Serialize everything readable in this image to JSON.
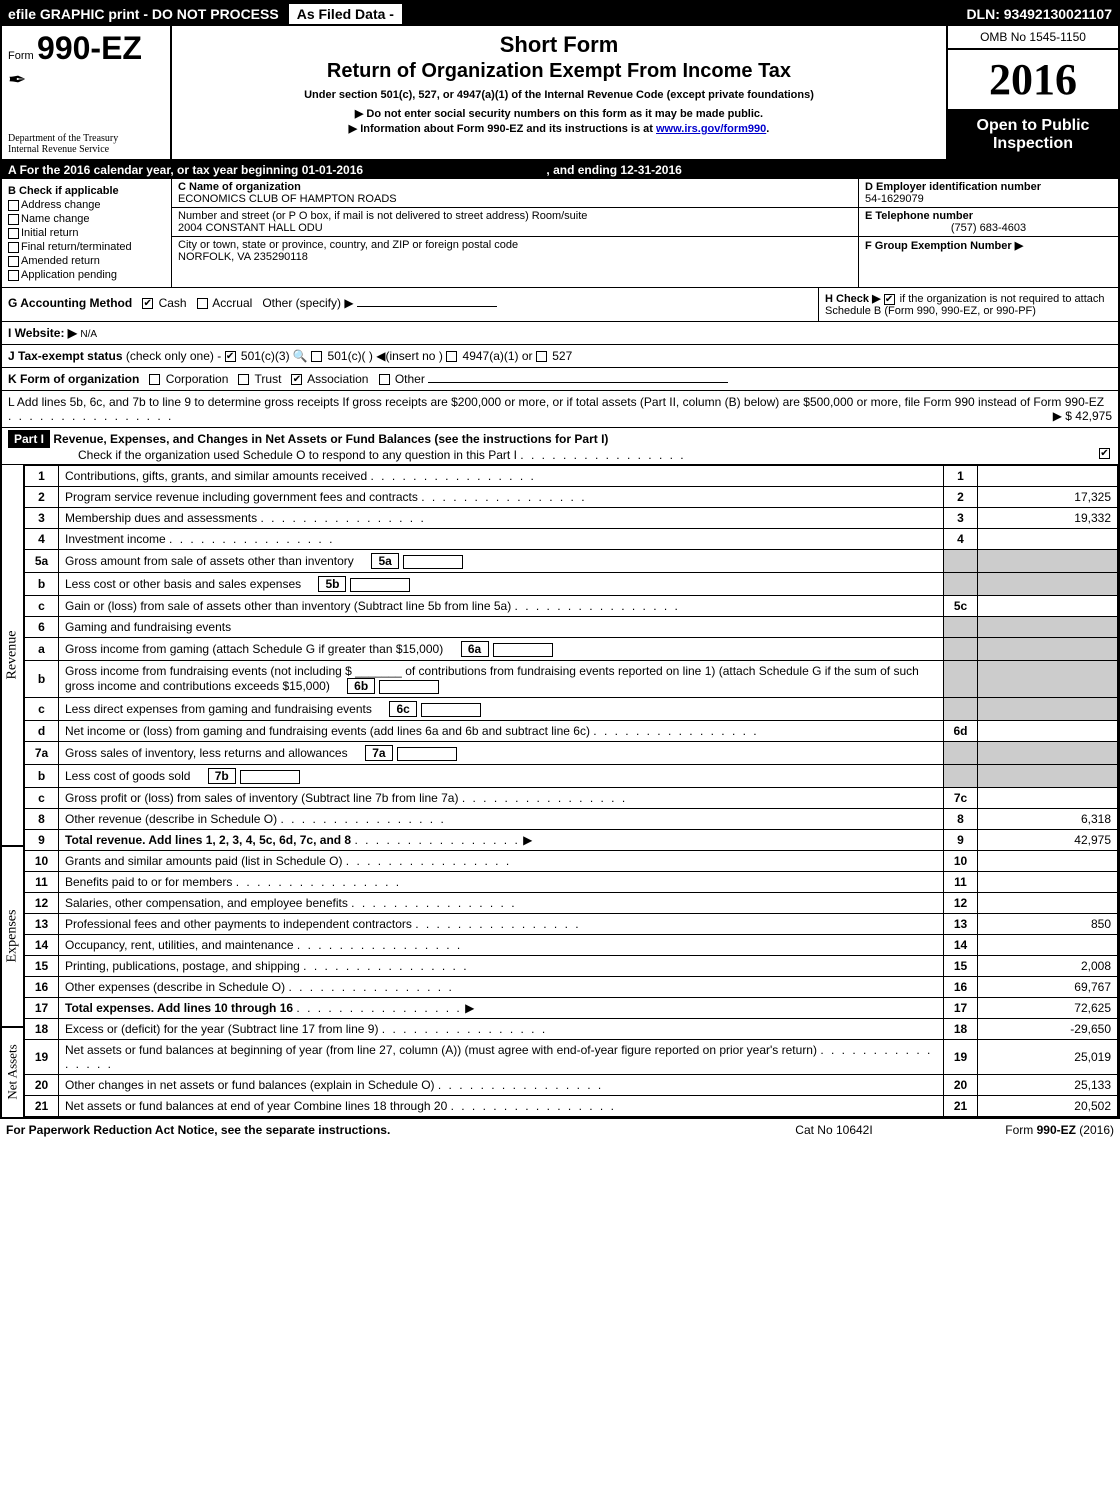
{
  "topbar": {
    "left": "efile GRAPHIC print - DO NOT PROCESS",
    "mid": "As Filed Data -",
    "right": "DLN: 93492130021107"
  },
  "header": {
    "form_prefix": "Form",
    "form_number": "990-EZ",
    "short_form": "Short Form",
    "title": "Return of Organization Exempt From Income Tax",
    "subtitle": "Under section 501(c), 527, or 4947(a)(1) of the Internal Revenue Code (except private foundations)",
    "note1": "▶ Do not enter social security numbers on this form as it may be made public.",
    "note2_prefix": "▶ Information about Form 990-EZ and its instructions is at ",
    "note2_link": "www.irs.gov/form990",
    "note2_suffix": ".",
    "dept1": "Department of the Treasury",
    "dept2": "Internal Revenue Service",
    "omb": "OMB No  1545-1150",
    "year": "2016",
    "open": "Open to Public Inspection"
  },
  "sectionA": {
    "prefix": "A",
    "text": "For the 2016 calendar year, or tax year beginning 01-01-2016",
    "ending": ", and ending 12-31-2016"
  },
  "sectionB": {
    "title": "B  Check if applicable",
    "items": [
      "Address change",
      "Name change",
      "Initial return",
      "Final return/terminated",
      "Amended return",
      "Application pending"
    ]
  },
  "sectionC": {
    "label": "C Name of organization",
    "name": "ECONOMICS CLUB OF HAMPTON ROADS",
    "addr_label": "Number and street (or P  O  box, if mail is not delivered to street address)  Room/suite",
    "addr": "2004 CONSTANT HALL ODU",
    "city_label": "City or town, state or province, country, and ZIP or foreign postal code",
    "city": "NORFOLK, VA  235290118"
  },
  "sectionD": {
    "label": "D Employer identification number",
    "value": "54-1629079"
  },
  "sectionE": {
    "label": "E Telephone number",
    "value": "(757) 683-4603"
  },
  "sectionF": {
    "label": "F Group Exemption Number  ▶"
  },
  "rowG": {
    "label": "G Accounting Method",
    "cash": "Cash",
    "accrual": "Accrual",
    "other": "Other (specify) ▶"
  },
  "rowH": {
    "text1": "H   Check ▶",
    "text2": "if the organization is not required to attach Schedule B (Form 990, 990-EZ, or 990-PF)"
  },
  "rowI": {
    "label": "I Website: ▶",
    "value": "N/A"
  },
  "rowJ": {
    "label": "J Tax-exempt status",
    "text": "(check only one) -",
    "opt1": "501(c)(3)",
    "opt2": "501(c)(  )",
    "opt2b": "◀(insert no )",
    "opt3": "4947(a)(1) or",
    "opt4": "527"
  },
  "rowK": {
    "label": "K Form of organization",
    "opts": [
      "Corporation",
      "Trust",
      "Association",
      "Other"
    ]
  },
  "rowL": {
    "text": "L Add lines 5b, 6c, and 7b to line 9 to determine gross receipts  If gross receipts are $200,000 or more, or if total assets (Part II, column (B) below) are $500,000 or more, file Form 990 instead of Form 990-EZ",
    "amount": "▶ $ 42,975"
  },
  "part1": {
    "label": "Part I",
    "title": "Revenue, Expenses, and Changes in Net Assets or Fund Balances (see the instructions for Part I)",
    "check": "Check if the organization used Schedule O to respond to any question in this Part I"
  },
  "side": {
    "revenue": "Revenue",
    "expenses": "Expenses",
    "netassets": "Net Assets"
  },
  "lines": [
    {
      "n": "1",
      "d": "Contributions, gifts, grants, and similar amounts received",
      "c": "1",
      "a": ""
    },
    {
      "n": "2",
      "d": "Program service revenue including government fees and contracts",
      "c": "2",
      "a": "17,325"
    },
    {
      "n": "3",
      "d": "Membership dues and assessments",
      "c": "3",
      "a": "19,332"
    },
    {
      "n": "4",
      "d": "Investment income",
      "c": "4",
      "a": ""
    },
    {
      "n": "5a",
      "d": "Gross amount from sale of assets other than inventory",
      "ic": "5a"
    },
    {
      "n": "b",
      "d": "Less  cost or other basis and sales expenses",
      "ic": "5b"
    },
    {
      "n": "c",
      "d": "Gain or (loss) from sale of assets other than inventory (Subtract line 5b from line 5a)",
      "c": "5c",
      "a": ""
    },
    {
      "n": "6",
      "d": "Gaming and fundraising events"
    },
    {
      "n": "a",
      "d": "Gross income from gaming (attach Schedule G if greater than $15,000)",
      "ic": "6a"
    },
    {
      "n": "b",
      "d": "Gross income from fundraising events (not including $ _______ of contributions from fundraising events reported on line 1) (attach Schedule G if the sum of such gross income and contributions exceeds $15,000)",
      "ic": "6b"
    },
    {
      "n": "c",
      "d": "Less  direct expenses from gaming and fundraising events",
      "ic": "6c"
    },
    {
      "n": "d",
      "d": "Net income or (loss) from gaming and fundraising events (add lines 6a and 6b and subtract line 6c)",
      "c": "6d",
      "a": ""
    },
    {
      "n": "7a",
      "d": "Gross sales of inventory, less returns and allowances",
      "ic": "7a"
    },
    {
      "n": "b",
      "d": "Less  cost of goods sold",
      "ic": "7b"
    },
    {
      "n": "c",
      "d": "Gross profit or (loss) from sales of inventory (Subtract line 7b from line 7a)",
      "c": "7c",
      "a": ""
    },
    {
      "n": "8",
      "d": "Other revenue (describe in Schedule O)",
      "c": "8",
      "a": "6,318"
    },
    {
      "n": "9",
      "d": "Total revenue. Add lines 1, 2, 3, 4, 5c, 6d, 7c, and 8",
      "c": "9",
      "a": "42,975",
      "bold": true,
      "arrow": true
    },
    {
      "n": "10",
      "d": "Grants and similar amounts paid (list in Schedule O)",
      "c": "10",
      "a": ""
    },
    {
      "n": "11",
      "d": "Benefits paid to or for members",
      "c": "11",
      "a": ""
    },
    {
      "n": "12",
      "d": "Salaries, other compensation, and employee benefits",
      "c": "12",
      "a": ""
    },
    {
      "n": "13",
      "d": "Professional fees and other payments to independent contractors",
      "c": "13",
      "a": "850"
    },
    {
      "n": "14",
      "d": "Occupancy, rent, utilities, and maintenance",
      "c": "14",
      "a": ""
    },
    {
      "n": "15",
      "d": "Printing, publications, postage, and shipping",
      "c": "15",
      "a": "2,008"
    },
    {
      "n": "16",
      "d": "Other expenses (describe in Schedule O)",
      "c": "16",
      "a": "69,767"
    },
    {
      "n": "17",
      "d": "Total expenses. Add lines 10 through 16",
      "c": "17",
      "a": "72,625",
      "bold": true,
      "arrow": true
    },
    {
      "n": "18",
      "d": "Excess or (deficit) for the year (Subtract line 17 from line 9)",
      "c": "18",
      "a": "-29,650"
    },
    {
      "n": "19",
      "d": "Net assets or fund balances at beginning of year (from line 27, column (A)) (must agree with end-of-year figure reported on prior year's return)",
      "c": "19",
      "a": "25,019"
    },
    {
      "n": "20",
      "d": "Other changes in net assets or fund balances (explain in Schedule O)",
      "c": "20",
      "a": "25,133"
    },
    {
      "n": "21",
      "d": "Net assets or fund balances at end of year  Combine lines 18 through 20",
      "c": "21",
      "a": "20,502"
    }
  ],
  "footer": {
    "left": "For Paperwork Reduction Act Notice, see the separate instructions.",
    "mid": "Cat  No  10642I",
    "right": "Form 990-EZ (2016)"
  }
}
